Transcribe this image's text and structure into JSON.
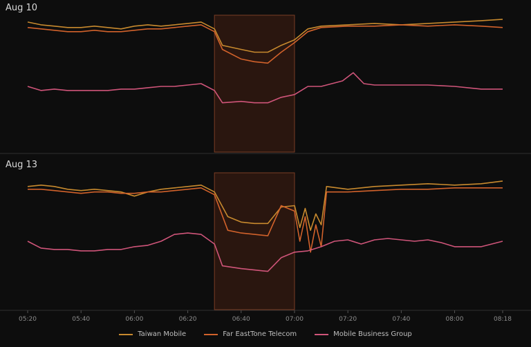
{
  "chart_data": {
    "type": "line",
    "x_ticks": [
      "05:20",
      "05:40",
      "06:00",
      "06:20",
      "06:40",
      "07:00",
      "07:20",
      "07:40",
      "08:00",
      "08:18"
    ],
    "highlight": {
      "from": "06:30",
      "to": "07:00",
      "fill": "#2a160f",
      "stroke": "#7a3d25"
    },
    "panels": [
      {
        "title": "Aug 10",
        "series": [
          {
            "name": "Taiwan Mobile",
            "color": "#c88a2e",
            "values": [
              {
                "x": "05:20",
                "y": 95
              },
              {
                "x": "05:25",
                "y": 93
              },
              {
                "x": "05:30",
                "y": 92
              },
              {
                "x": "05:35",
                "y": 91
              },
              {
                "x": "05:40",
                "y": 91
              },
              {
                "x": "05:45",
                "y": 92
              },
              {
                "x": "05:50",
                "y": 91
              },
              {
                "x": "05:55",
                "y": 90
              },
              {
                "x": "06:00",
                "y": 92
              },
              {
                "x": "06:05",
                "y": 93
              },
              {
                "x": "06:10",
                "y": 92
              },
              {
                "x": "06:15",
                "y": 93
              },
              {
                "x": "06:20",
                "y": 94
              },
              {
                "x": "06:25",
                "y": 95
              },
              {
                "x": "06:30",
                "y": 90
              },
              {
                "x": "06:33",
                "y": 78
              },
              {
                "x": "06:40",
                "y": 75
              },
              {
                "x": "06:45",
                "y": 73
              },
              {
                "x": "06:50",
                "y": 73
              },
              {
                "x": "06:55",
                "y": 78
              },
              {
                "x": "07:00",
                "y": 82
              },
              {
                "x": "07:05",
                "y": 90
              },
              {
                "x": "07:10",
                "y": 92
              },
              {
                "x": "07:20",
                "y": 93
              },
              {
                "x": "07:30",
                "y": 94
              },
              {
                "x": "07:40",
                "y": 93
              },
              {
                "x": "07:50",
                "y": 94
              },
              {
                "x": "08:00",
                "y": 95
              },
              {
                "x": "08:10",
                "y": 96
              },
              {
                "x": "08:18",
                "y": 97
              }
            ]
          },
          {
            "name": "Far EastTone Telecom",
            "color": "#d2622b",
            "values": [
              {
                "x": "05:20",
                "y": 91
              },
              {
                "x": "05:25",
                "y": 90
              },
              {
                "x": "05:30",
                "y": 89
              },
              {
                "x": "05:35",
                "y": 88
              },
              {
                "x": "05:40",
                "y": 88
              },
              {
                "x": "05:45",
                "y": 89
              },
              {
                "x": "05:50",
                "y": 88
              },
              {
                "x": "05:55",
                "y": 88
              },
              {
                "x": "06:00",
                "y": 89
              },
              {
                "x": "06:05",
                "y": 90
              },
              {
                "x": "06:10",
                "y": 90
              },
              {
                "x": "06:15",
                "y": 91
              },
              {
                "x": "06:20",
                "y": 92
              },
              {
                "x": "06:25",
                "y": 93
              },
              {
                "x": "06:30",
                "y": 88
              },
              {
                "x": "06:33",
                "y": 75
              },
              {
                "x": "06:40",
                "y": 68
              },
              {
                "x": "06:45",
                "y": 66
              },
              {
                "x": "06:50",
                "y": 65
              },
              {
                "x": "06:55",
                "y": 73
              },
              {
                "x": "07:00",
                "y": 80
              },
              {
                "x": "07:05",
                "y": 88
              },
              {
                "x": "07:10",
                "y": 91
              },
              {
                "x": "07:20",
                "y": 92
              },
              {
                "x": "07:30",
                "y": 92
              },
              {
                "x": "07:40",
                "y": 93
              },
              {
                "x": "07:50",
                "y": 92
              },
              {
                "x": "08:00",
                "y": 93
              },
              {
                "x": "08:10",
                "y": 92
              },
              {
                "x": "08:18",
                "y": 91
              }
            ]
          },
          {
            "name": "Mobile Business Group",
            "color": "#d0557a",
            "values": [
              {
                "x": "05:20",
                "y": 48
              },
              {
                "x": "05:25",
                "y": 45
              },
              {
                "x": "05:30",
                "y": 46
              },
              {
                "x": "05:35",
                "y": 45
              },
              {
                "x": "05:40",
                "y": 45
              },
              {
                "x": "05:45",
                "y": 45
              },
              {
                "x": "05:50",
                "y": 45
              },
              {
                "x": "05:55",
                "y": 46
              },
              {
                "x": "06:00",
                "y": 46
              },
              {
                "x": "06:05",
                "y": 47
              },
              {
                "x": "06:10",
                "y": 48
              },
              {
                "x": "06:15",
                "y": 48
              },
              {
                "x": "06:20",
                "y": 49
              },
              {
                "x": "06:25",
                "y": 50
              },
              {
                "x": "06:30",
                "y": 45
              },
              {
                "x": "06:33",
                "y": 36
              },
              {
                "x": "06:40",
                "y": 37
              },
              {
                "x": "06:45",
                "y": 36
              },
              {
                "x": "06:50",
                "y": 36
              },
              {
                "x": "06:55",
                "y": 40
              },
              {
                "x": "07:00",
                "y": 42
              },
              {
                "x": "07:05",
                "y": 48
              },
              {
                "x": "07:10",
                "y": 48
              },
              {
                "x": "07:18",
                "y": 52
              },
              {
                "x": "07:22",
                "y": 58
              },
              {
                "x": "07:26",
                "y": 50
              },
              {
                "x": "07:30",
                "y": 49
              },
              {
                "x": "07:40",
                "y": 49
              },
              {
                "x": "07:50",
                "y": 49
              },
              {
                "x": "08:00",
                "y": 48
              },
              {
                "x": "08:10",
                "y": 46
              },
              {
                "x": "08:18",
                "y": 46
              }
            ]
          }
        ]
      },
      {
        "title": "Aug 13",
        "series": [
          {
            "name": "Taiwan Mobile",
            "color": "#c88a2e",
            "values": [
              {
                "x": "05:20",
                "y": 90
              },
              {
                "x": "05:25",
                "y": 91
              },
              {
                "x": "05:30",
                "y": 90
              },
              {
                "x": "05:35",
                "y": 88
              },
              {
                "x": "05:40",
                "y": 87
              },
              {
                "x": "05:45",
                "y": 88
              },
              {
                "x": "05:50",
                "y": 87
              },
              {
                "x": "05:55",
                "y": 86
              },
              {
                "x": "06:00",
                "y": 83
              },
              {
                "x": "06:05",
                "y": 86
              },
              {
                "x": "06:10",
                "y": 88
              },
              {
                "x": "06:15",
                "y": 89
              },
              {
                "x": "06:20",
                "y": 90
              },
              {
                "x": "06:25",
                "y": 91
              },
              {
                "x": "06:30",
                "y": 86
              },
              {
                "x": "06:35",
                "y": 68
              },
              {
                "x": "06:40",
                "y": 64
              },
              {
                "x": "06:45",
                "y": 63
              },
              {
                "x": "06:50",
                "y": 63
              },
              {
                "x": "06:55",
                "y": 75
              },
              {
                "x": "07:00",
                "y": 76
              },
              {
                "x": "07:02",
                "y": 60
              },
              {
                "x": "07:04",
                "y": 74
              },
              {
                "x": "07:06",
                "y": 58
              },
              {
                "x": "07:08",
                "y": 70
              },
              {
                "x": "07:10",
                "y": 62
              },
              {
                "x": "07:12",
                "y": 90
              },
              {
                "x": "07:20",
                "y": 88
              },
              {
                "x": "07:30",
                "y": 90
              },
              {
                "x": "07:40",
                "y": 91
              },
              {
                "x": "07:50",
                "y": 92
              },
              {
                "x": "08:00",
                "y": 91
              },
              {
                "x": "08:10",
                "y": 92
              },
              {
                "x": "08:18",
                "y": 94
              }
            ]
          },
          {
            "name": "Far EastTone Telecom",
            "color": "#d2622b",
            "values": [
              {
                "x": "05:20",
                "y": 88
              },
              {
                "x": "05:25",
                "y": 88
              },
              {
                "x": "05:30",
                "y": 87
              },
              {
                "x": "05:35",
                "y": 86
              },
              {
                "x": "05:40",
                "y": 85
              },
              {
                "x": "05:45",
                "y": 86
              },
              {
                "x": "05:50",
                "y": 86
              },
              {
                "x": "05:55",
                "y": 85
              },
              {
                "x": "06:00",
                "y": 85
              },
              {
                "x": "06:05",
                "y": 86
              },
              {
                "x": "06:10",
                "y": 86
              },
              {
                "x": "06:15",
                "y": 87
              },
              {
                "x": "06:20",
                "y": 88
              },
              {
                "x": "06:25",
                "y": 89
              },
              {
                "x": "06:30",
                "y": 84
              },
              {
                "x": "06:35",
                "y": 58
              },
              {
                "x": "06:40",
                "y": 56
              },
              {
                "x": "06:45",
                "y": 55
              },
              {
                "x": "06:50",
                "y": 54
              },
              {
                "x": "06:55",
                "y": 76
              },
              {
                "x": "07:00",
                "y": 72
              },
              {
                "x": "07:02",
                "y": 50
              },
              {
                "x": "07:04",
                "y": 68
              },
              {
                "x": "07:06",
                "y": 42
              },
              {
                "x": "07:08",
                "y": 62
              },
              {
                "x": "07:10",
                "y": 46
              },
              {
                "x": "07:12",
                "y": 86
              },
              {
                "x": "07:20",
                "y": 86
              },
              {
                "x": "07:30",
                "y": 87
              },
              {
                "x": "07:40",
                "y": 88
              },
              {
                "x": "07:50",
                "y": 88
              },
              {
                "x": "08:00",
                "y": 89
              },
              {
                "x": "08:10",
                "y": 89
              },
              {
                "x": "08:18",
                "y": 89
              }
            ]
          },
          {
            "name": "Mobile Business Group",
            "color": "#d0557a",
            "values": [
              {
                "x": "05:20",
                "y": 50
              },
              {
                "x": "05:25",
                "y": 45
              },
              {
                "x": "05:30",
                "y": 44
              },
              {
                "x": "05:35",
                "y": 44
              },
              {
                "x": "05:40",
                "y": 43
              },
              {
                "x": "05:45",
                "y": 43
              },
              {
                "x": "05:50",
                "y": 44
              },
              {
                "x": "05:55",
                "y": 44
              },
              {
                "x": "06:00",
                "y": 46
              },
              {
                "x": "06:05",
                "y": 47
              },
              {
                "x": "06:10",
                "y": 50
              },
              {
                "x": "06:15",
                "y": 55
              },
              {
                "x": "06:20",
                "y": 56
              },
              {
                "x": "06:25",
                "y": 55
              },
              {
                "x": "06:30",
                "y": 48
              },
              {
                "x": "06:33",
                "y": 32
              },
              {
                "x": "06:40",
                "y": 30
              },
              {
                "x": "06:45",
                "y": 29
              },
              {
                "x": "06:50",
                "y": 28
              },
              {
                "x": "06:55",
                "y": 38
              },
              {
                "x": "07:00",
                "y": 42
              },
              {
                "x": "07:05",
                "y": 43
              },
              {
                "x": "07:10",
                "y": 46
              },
              {
                "x": "07:15",
                "y": 50
              },
              {
                "x": "07:20",
                "y": 51
              },
              {
                "x": "07:25",
                "y": 48
              },
              {
                "x": "07:30",
                "y": 51
              },
              {
                "x": "07:35",
                "y": 52
              },
              {
                "x": "07:40",
                "y": 51
              },
              {
                "x": "07:45",
                "y": 50
              },
              {
                "x": "07:50",
                "y": 51
              },
              {
                "x": "07:55",
                "y": 49
              },
              {
                "x": "08:00",
                "y": 46
              },
              {
                "x": "08:05",
                "y": 46
              },
              {
                "x": "08:10",
                "y": 46
              },
              {
                "x": "08:18",
                "y": 50
              }
            ]
          }
        ]
      }
    ],
    "ylim": [
      0,
      100
    ],
    "legend": {
      "position": "bottom",
      "entries": [
        "Taiwan Mobile",
        "Far EastTone Telecom",
        "Mobile Business Group"
      ]
    },
    "grid": false
  }
}
